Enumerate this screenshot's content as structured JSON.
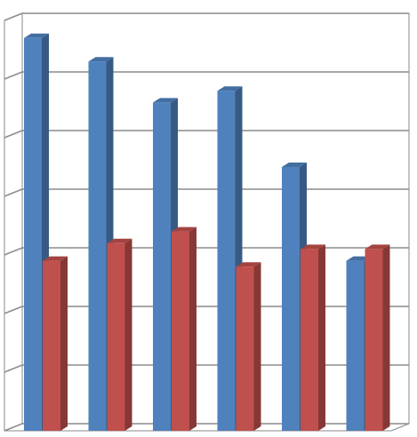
{
  "chart_data": {
    "type": "bar3d",
    "categories": [
      null,
      null,
      null,
      null,
      null,
      null
    ],
    "series": [
      {
        "color": "#4f81bd",
        "values": [
          6.7,
          6.3,
          5.6,
          5.8,
          4.5,
          2.9
        ]
      },
      {
        "color": "#c0504d",
        "values": [
          2.9,
          3.2,
          3.4,
          2.8,
          3.1,
          3.1
        ]
      }
    ],
    "ylim": [
      0,
      7
    ],
    "yticks": [
      0,
      1,
      2,
      3,
      4,
      5,
      6,
      7
    ],
    "grid": true
  }
}
